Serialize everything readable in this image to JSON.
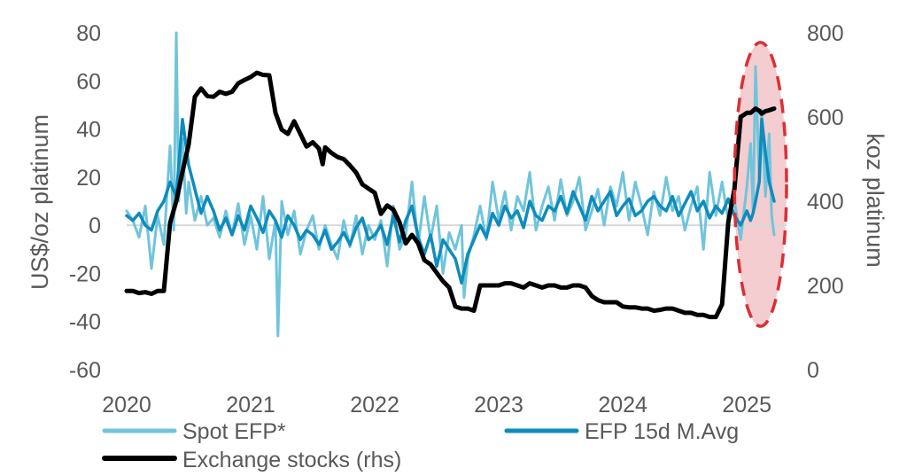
{
  "chart_data": {
    "type": "line",
    "title": "",
    "ylabel": "US$/oz platinum",
    "y2label": "koz platinum",
    "xlim": [
      2020.0,
      2025.32
    ],
    "ylim": [
      -60,
      80
    ],
    "y2lim": [
      0,
      800
    ],
    "x_ticks": [
      2020,
      2021,
      2022,
      2023,
      2024,
      2025
    ],
    "x_tick_labels": [
      "2020",
      "2021",
      "2022",
      "2023",
      "2024",
      "2025"
    ],
    "y_ticks": [
      80,
      60,
      40,
      20,
      0,
      -20,
      -40,
      -60
    ],
    "y_tick_labels": [
      "80",
      "60",
      "40",
      "20",
      "0",
      "-20",
      "-40",
      "-60"
    ],
    "y2_ticks": [
      800,
      600,
      400,
      200,
      0
    ],
    "y2_tick_labels": [
      "800",
      "600",
      "400",
      "200",
      "0"
    ],
    "grid": false,
    "zero_line": true,
    "legend": {
      "position": "bottom",
      "entries": [
        {
          "label": "Spot EFP*",
          "color": "#70c4dc"
        },
        {
          "label": "EFP 15d M.Avg",
          "color": "#0e8cbc"
        },
        {
          "label": "Exchange stocks (rhs)",
          "color": "#000000"
        }
      ]
    },
    "annotation": {
      "shape": "dashed-ellipse",
      "color": "#dd2e35",
      "fill": "#f2c4c8",
      "x_range": [
        2024.9,
        2025.32
      ],
      "y_range": [
        -42,
        76
      ]
    },
    "series": [
      {
        "name": "Spot EFP*",
        "axis": "left",
        "color": "#70c4dc",
        "x": [
          2020.0,
          2020.05,
          2020.1,
          2020.15,
          2020.2,
          2020.25,
          2020.3,
          2020.35,
          2020.38,
          2020.4,
          2020.42,
          2020.45,
          2020.48,
          2020.5,
          2020.55,
          2020.6,
          2020.65,
          2020.7,
          2020.75,
          2020.8,
          2020.85,
          2020.9,
          2020.95,
          2021.0,
          2021.05,
          2021.1,
          2021.15,
          2021.2,
          2021.22,
          2021.25,
          2021.3,
          2021.35,
          2021.4,
          2021.45,
          2021.5,
          2021.55,
          2021.6,
          2021.65,
          2021.7,
          2021.75,
          2021.8,
          2021.85,
          2021.9,
          2021.95,
          2022.0,
          2022.05,
          2022.1,
          2022.15,
          2022.2,
          2022.25,
          2022.3,
          2022.35,
          2022.4,
          2022.45,
          2022.5,
          2022.55,
          2022.6,
          2022.65,
          2022.7,
          2022.72,
          2022.75,
          2022.8,
          2022.85,
          2022.9,
          2022.95,
          2023.0,
          2023.05,
          2023.1,
          2023.15,
          2023.2,
          2023.25,
          2023.3,
          2023.35,
          2023.4,
          2023.45,
          2023.5,
          2023.55,
          2023.6,
          2023.65,
          2023.7,
          2023.75,
          2023.8,
          2023.85,
          2023.9,
          2023.95,
          2024.0,
          2024.05,
          2024.1,
          2024.15,
          2024.2,
          2024.25,
          2024.3,
          2024.35,
          2024.4,
          2024.45,
          2024.5,
          2024.55,
          2024.6,
          2024.65,
          2024.7,
          2024.75,
          2024.8,
          2024.85,
          2024.9,
          2024.95,
          2025.0,
          2025.03,
          2025.05,
          2025.07,
          2025.1,
          2025.12,
          2025.15,
          2025.18,
          2025.2,
          2025.22
        ],
        "values": [
          6,
          2,
          -5,
          8,
          -18,
          4,
          -8,
          33,
          -2,
          80,
          10,
          36,
          5,
          18,
          2,
          12,
          0,
          3,
          -5,
          6,
          -4,
          9,
          -8,
          4,
          -10,
          12,
          -14,
          2,
          -46,
          10,
          -4,
          6,
          -12,
          -2,
          4,
          -10,
          0,
          -8,
          -14,
          2,
          -9,
          4,
          -12,
          0,
          -6,
          2,
          -17,
          8,
          -10,
          -4,
          18,
          -8,
          12,
          -6,
          8,
          -20,
          -3,
          -10,
          0,
          -30,
          -14,
          -4,
          8,
          -6,
          18,
          2,
          14,
          -2,
          12,
          6,
          22,
          -2,
          8,
          16,
          2,
          19,
          4,
          10,
          20,
          -2,
          6,
          15,
          0,
          16,
          8,
          22,
          2,
          18,
          8,
          -4,
          14,
          4,
          20,
          6,
          12,
          -2,
          8,
          16,
          -10,
          22,
          4,
          18,
          2,
          10,
          -6,
          16,
          34,
          6,
          66,
          20,
          48,
          12,
          38,
          4,
          -4
        ]
      },
      {
        "name": "EFP 15d M.Avg",
        "axis": "left",
        "color": "#0e8cbc",
        "x": [
          2020.0,
          2020.05,
          2020.1,
          2020.15,
          2020.2,
          2020.25,
          2020.3,
          2020.35,
          2020.4,
          2020.45,
          2020.5,
          2020.55,
          2020.6,
          2020.65,
          2020.7,
          2020.75,
          2020.8,
          2020.85,
          2020.9,
          2020.95,
          2021.0,
          2021.05,
          2021.1,
          2021.15,
          2021.2,
          2021.25,
          2021.3,
          2021.35,
          2021.4,
          2021.45,
          2021.5,
          2021.55,
          2021.6,
          2021.65,
          2021.7,
          2021.75,
          2021.8,
          2021.85,
          2021.9,
          2021.95,
          2022.0,
          2022.05,
          2022.1,
          2022.15,
          2022.2,
          2022.25,
          2022.3,
          2022.35,
          2022.4,
          2022.45,
          2022.5,
          2022.55,
          2022.6,
          2022.65,
          2022.7,
          2022.75,
          2022.8,
          2022.85,
          2022.9,
          2022.95,
          2023.0,
          2023.05,
          2023.1,
          2023.15,
          2023.2,
          2023.25,
          2023.3,
          2023.35,
          2023.4,
          2023.45,
          2023.5,
          2023.55,
          2023.6,
          2023.65,
          2023.7,
          2023.75,
          2023.8,
          2023.85,
          2023.9,
          2023.95,
          2024.0,
          2024.05,
          2024.1,
          2024.15,
          2024.2,
          2024.25,
          2024.3,
          2024.35,
          2024.4,
          2024.45,
          2024.5,
          2024.55,
          2024.6,
          2024.65,
          2024.7,
          2024.75,
          2024.8,
          2024.85,
          2024.9,
          2024.95,
          2025.0,
          2025.03,
          2025.05,
          2025.07,
          2025.1,
          2025.12,
          2025.15,
          2025.18,
          2025.2,
          2025.22
        ],
        "values": [
          4,
          2,
          5,
          0,
          -2,
          6,
          10,
          18,
          12,
          44,
          25,
          15,
          5,
          12,
          6,
          -2,
          3,
          -4,
          4,
          -2,
          8,
          3,
          -3,
          6,
          2,
          -5,
          4,
          0,
          -6,
          -2,
          -4,
          -8,
          -2,
          -10,
          -7,
          -3,
          -8,
          -1,
          3,
          -6,
          -4,
          0,
          -8,
          4,
          -7,
          2,
          8,
          -5,
          -12,
          -4,
          -17,
          -6,
          -10,
          -14,
          -24,
          -12,
          -6,
          0,
          -5,
          5,
          0,
          8,
          3,
          6,
          -1,
          10,
          4,
          2,
          8,
          6,
          12,
          5,
          14,
          8,
          2,
          12,
          6,
          10,
          14,
          4,
          8,
          11,
          4,
          6,
          10,
          12,
          8,
          6,
          12,
          4,
          9,
          14,
          6,
          10,
          3,
          8,
          5,
          11,
          4,
          0,
          6,
          2,
          5,
          10,
          18,
          44,
          30,
          18,
          14,
          10
        ]
      },
      {
        "name": "Exchange stocks (rhs)",
        "axis": "right",
        "color": "#000000",
        "x": [
          2020.0,
          2020.05,
          2020.1,
          2020.15,
          2020.2,
          2020.25,
          2020.3,
          2020.35,
          2020.4,
          2020.45,
          2020.5,
          2020.55,
          2020.6,
          2020.65,
          2020.7,
          2020.75,
          2020.8,
          2020.85,
          2020.9,
          2020.95,
          2021.0,
          2021.05,
          2021.1,
          2021.15,
          2021.2,
          2021.25,
          2021.3,
          2021.35,
          2021.4,
          2021.45,
          2021.5,
          2021.55,
          2021.58,
          2021.6,
          2021.65,
          2021.7,
          2021.75,
          2021.8,
          2021.85,
          2021.9,
          2021.95,
          2022.0,
          2022.05,
          2022.1,
          2022.15,
          2022.2,
          2022.25,
          2022.3,
          2022.35,
          2022.4,
          2022.45,
          2022.5,
          2022.55,
          2022.6,
          2022.65,
          2022.7,
          2022.75,
          2022.8,
          2022.85,
          2022.9,
          2022.95,
          2023.0,
          2023.05,
          2023.1,
          2023.15,
          2023.2,
          2023.25,
          2023.3,
          2023.35,
          2023.4,
          2023.45,
          2023.5,
          2023.55,
          2023.6,
          2023.65,
          2023.7,
          2023.75,
          2023.8,
          2023.85,
          2023.9,
          2023.95,
          2024.0,
          2024.05,
          2024.1,
          2024.15,
          2024.2,
          2024.25,
          2024.3,
          2024.35,
          2024.4,
          2024.45,
          2024.5,
          2024.55,
          2024.6,
          2024.65,
          2024.7,
          2024.75,
          2024.8,
          2024.85,
          2024.9,
          2024.95,
          2025.0,
          2025.03,
          2025.05,
          2025.07,
          2025.1,
          2025.12,
          2025.15,
          2025.18,
          2025.2,
          2025.22
        ],
        "values": [
          187,
          187,
          182,
          184,
          180,
          187,
          187,
          348,
          400,
          470,
          535,
          648,
          668,
          650,
          648,
          660,
          655,
          660,
          680,
          688,
          695,
          705,
          700,
          699,
          610,
          570,
          560,
          590,
          560,
          530,
          540,
          525,
          488,
          528,
          515,
          505,
          500,
          485,
          468,
          440,
          430,
          420,
          370,
          390,
          380,
          350,
          300,
          320,
          300,
          260,
          250,
          230,
          210,
          195,
          150,
          145,
          145,
          140,
          200,
          200,
          200,
          200,
          205,
          205,
          200,
          195,
          205,
          200,
          195,
          200,
          200,
          195,
          195,
          200,
          200,
          195,
          175,
          165,
          160,
          160,
          160,
          150,
          148,
          148,
          145,
          145,
          140,
          142,
          145,
          145,
          140,
          135,
          135,
          130,
          130,
          125,
          125,
          155,
          350,
          430,
          600,
          610,
          610,
          615,
          620,
          615,
          608,
          614,
          616,
          618,
          620
        ]
      }
    ]
  }
}
